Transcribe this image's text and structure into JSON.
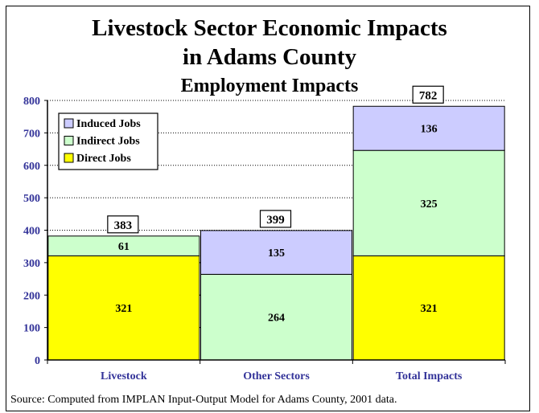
{
  "title_line1": "Livestock Sector Economic Impacts",
  "title_line2": "in Adams County",
  "subtitle": "Employment Impacts",
  "source": "Source: Computed from IMPLAN Input-Output Model for Adams County, 2001 data.",
  "colors": {
    "direct": "#ffff00",
    "indirect": "#ccffcc",
    "induced": "#ccccff",
    "axis_text": "#333399"
  },
  "chart_data": {
    "type": "bar",
    "stacked": true,
    "categories": [
      "Livestock",
      "Other Sectors",
      "Total Impacts"
    ],
    "series": [
      {
        "name": "Direct Jobs",
        "values": [
          321,
          0,
          321
        ]
      },
      {
        "name": "Indirect Jobs",
        "values": [
          61,
          264,
          325
        ]
      },
      {
        "name": "Induced Jobs",
        "values": [
          0,
          135,
          136
        ]
      }
    ],
    "totals": [
      "383",
      "399",
      "782"
    ],
    "segment_labels": [
      [
        "321",
        "",
        "321"
      ],
      [
        "61",
        "264",
        "325"
      ],
      [
        "",
        "135",
        "136"
      ]
    ],
    "ylim": [
      0,
      800
    ],
    "yticks": [
      0,
      100,
      200,
      300,
      400,
      500,
      600,
      700,
      800
    ],
    "grid": "horizontal dotted",
    "legend_position": "top-left",
    "legend_order": [
      "Induced Jobs",
      "Indirect Jobs",
      "Direct Jobs"
    ]
  }
}
